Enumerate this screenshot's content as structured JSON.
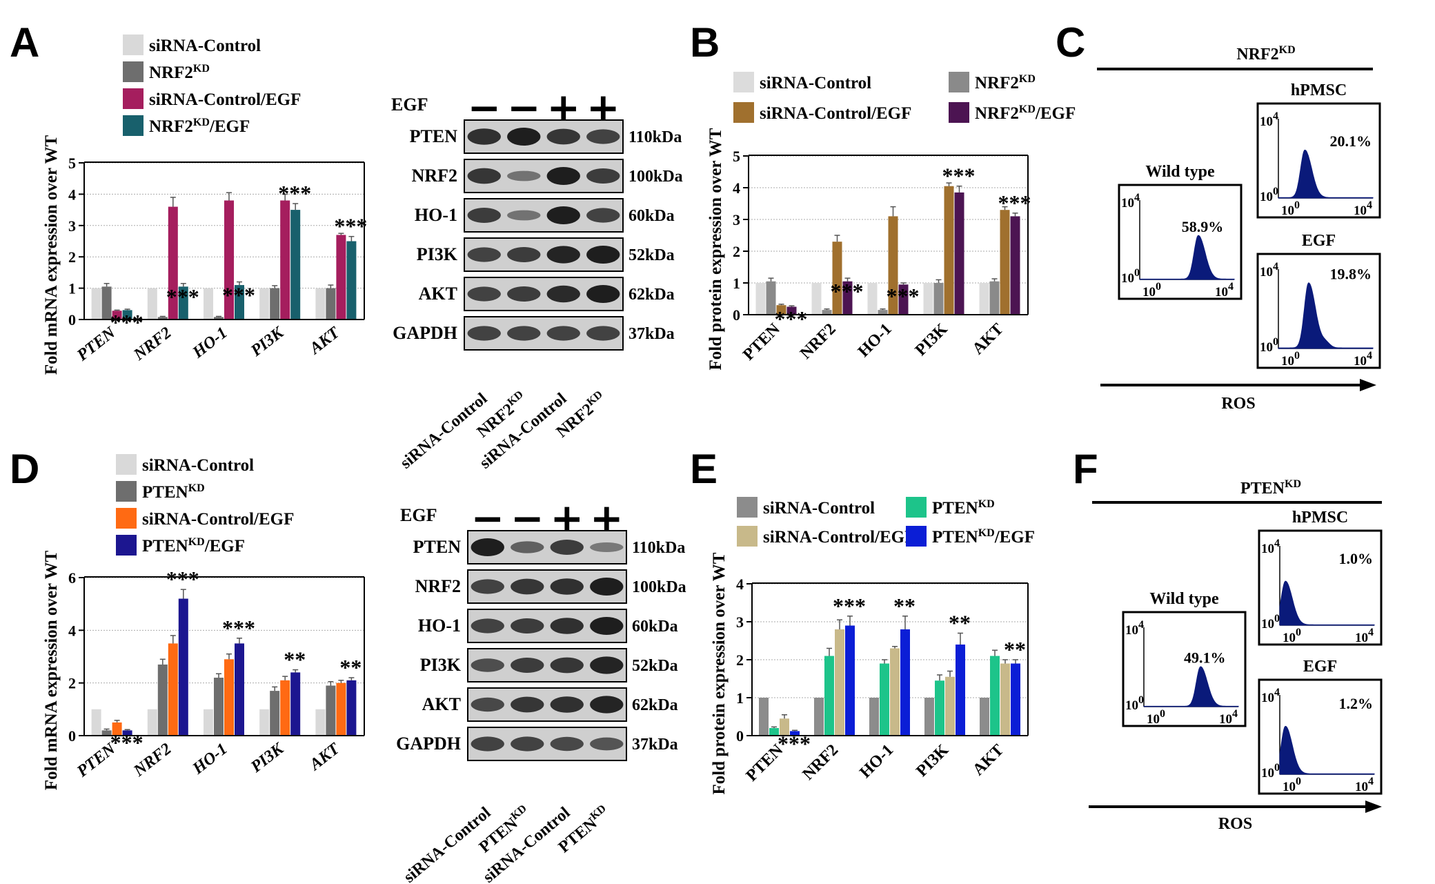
{
  "panels": {
    "A": "A",
    "B": "B",
    "C": "C",
    "D": "D",
    "E": "E",
    "F": "F"
  },
  "chart_data": [
    {
      "panel": "A",
      "type": "bar",
      "ylabel": "Fold mRNA expression over WT",
      "ylim": [
        0,
        5
      ],
      "yticks": [
        "0",
        "1",
        "2",
        "3",
        "4",
        "5"
      ],
      "categories": [
        "PTEN",
        "NRF2",
        "HO-1",
        "PI3K",
        "AKT"
      ],
      "series": [
        {
          "name": "siRNA-Control",
          "color": "#d9d9d9",
          "values": [
            1.0,
            1.0,
            1.0,
            1.0,
            1.0
          ],
          "errors": [
            0,
            0,
            0,
            0,
            0
          ]
        },
        {
          "name": "NRF2",
          "sup": "KD",
          "color": "#6e6e6e",
          "values": [
            1.05,
            0.08,
            0.08,
            1.0,
            1.0
          ],
          "errors": [
            0.1,
            0.02,
            0.02,
            0.08,
            0.1
          ]
        },
        {
          "name": "siRNA-Control/EGF",
          "color": "#a51e5e",
          "values": [
            0.28,
            3.6,
            3.8,
            3.8,
            2.7
          ],
          "errors": [
            0.02,
            0.3,
            0.25,
            0.2,
            0.05
          ]
        },
        {
          "name": "NRF2/EGF",
          "sup": "KD",
          "sup_after": "NRF2",
          "color": "#18606c",
          "values": [
            0.3,
            1.05,
            1.1,
            3.5,
            2.5
          ],
          "errors": [
            0.03,
            0.1,
            0.1,
            0.2,
            0.15
          ]
        }
      ],
      "significance": [
        "***",
        "***",
        "***",
        "***",
        "***"
      ]
    },
    {
      "panel": "B",
      "type": "bar",
      "ylabel": "Fold protein expression over WT",
      "ylim": [
        0,
        5
      ],
      "yticks": [
        "0",
        "1",
        "2",
        "3",
        "4",
        "5"
      ],
      "categories": [
        "PTEN",
        "NRF2",
        "HO-1",
        "PI3K",
        "AKT"
      ],
      "series": [
        {
          "name": "siRNA-Control",
          "color": "#dcdcdc",
          "values": [
            1.0,
            1.0,
            1.0,
            1.0,
            1.0
          ],
          "errors": [
            0,
            0,
            0,
            0,
            0
          ]
        },
        {
          "name": "NRF2",
          "sup": "KD",
          "color": "#8a8a8a",
          "values": [
            1.05,
            0.15,
            0.15,
            1.0,
            1.05
          ],
          "errors": [
            0.1,
            0.03,
            0.03,
            0.1,
            0.08
          ]
        },
        {
          "name": "siRNA-Control/EGF",
          "color": "#a0702e",
          "values": [
            0.3,
            2.3,
            3.1,
            4.05,
            3.3
          ],
          "errors": [
            0.03,
            0.2,
            0.3,
            0.1,
            0.1
          ]
        },
        {
          "name": "NRF2/EGF",
          "sup": "KD",
          "sup_after": "NRF2",
          "color": "#4c1452",
          "values": [
            0.25,
            1.05,
            0.95,
            3.85,
            3.1
          ],
          "errors": [
            0.03,
            0.1,
            0.05,
            0.2,
            0.1
          ]
        }
      ],
      "significance": [
        "***",
        "***",
        "***",
        "***",
        "***"
      ]
    },
    {
      "panel": "D",
      "type": "bar",
      "ylabel": "Fold mRNA expression over WT",
      "ylim": [
        0,
        6
      ],
      "yticks": [
        "0",
        "2",
        "4",
        "6"
      ],
      "categories": [
        "PTEN",
        "NRF2",
        "HO-1",
        "PI3K",
        "AKT"
      ],
      "series": [
        {
          "name": "siRNA-Control",
          "color": "#d9d9d9",
          "values": [
            1.0,
            1.0,
            1.0,
            1.0,
            1.0
          ],
          "errors": [
            0,
            0,
            0,
            0,
            0
          ]
        },
        {
          "name": "PTEN",
          "sup": "KD",
          "color": "#6e6e6e",
          "values": [
            0.2,
            2.7,
            2.2,
            1.7,
            1.9
          ],
          "errors": [
            0.05,
            0.2,
            0.15,
            0.15,
            0.15
          ]
        },
        {
          "name": "siRNA-Control/EGF",
          "color": "#ff6a13",
          "values": [
            0.5,
            3.5,
            2.9,
            2.1,
            2.0
          ],
          "errors": [
            0.08,
            0.3,
            0.2,
            0.15,
            0.1
          ]
        },
        {
          "name": "PTEN/EGF",
          "sup": "KD",
          "sup_after": "PTEN",
          "color": "#1c1690",
          "values": [
            0.2,
            5.2,
            3.5,
            2.4,
            2.1
          ],
          "errors": [
            0.03,
            0.35,
            0.2,
            0.1,
            0.1
          ]
        }
      ],
      "significance": [
        "***",
        "***",
        "***",
        "**",
        "**"
      ]
    },
    {
      "panel": "E",
      "type": "bar",
      "ylabel": "Fold protein expression over WT",
      "ylim": [
        0,
        4
      ],
      "yticks": [
        "0",
        "1",
        "2",
        "3",
        "4"
      ],
      "categories": [
        "PTEN",
        "NRF2",
        "HO-1",
        "PI3K",
        "AKT"
      ],
      "series": [
        {
          "name": "siRNA-Control",
          "color": "#8c8c8c",
          "values": [
            1.0,
            1.0,
            1.0,
            1.0,
            1.0
          ],
          "errors": [
            0,
            0,
            0,
            0,
            0
          ]
        },
        {
          "name": "PTEN",
          "sup": "KD",
          "color": "#1dc48a",
          "values": [
            0.2,
            2.1,
            1.9,
            1.45,
            2.1
          ],
          "errors": [
            0.03,
            0.2,
            0.1,
            0.15,
            0.15
          ]
        },
        {
          "name": "siRNA-Control/EGF",
          "color": "#c8b98a",
          "values": [
            0.45,
            2.8,
            2.3,
            1.55,
            1.9
          ],
          "errors": [
            0.1,
            0.25,
            0.05,
            0.15,
            0.1
          ]
        },
        {
          "name": "PTEN/EGF",
          "sup": "KD",
          "sup_after": "PTEN",
          "color": "#0b1ed6",
          "values": [
            0.12,
            2.9,
            2.8,
            2.4,
            1.9
          ],
          "errors": [
            0.02,
            0.25,
            0.35,
            0.3,
            0.1
          ]
        }
      ],
      "significance": [
        "***",
        "***",
        "**",
        "**",
        "**"
      ]
    },
    {
      "panel": "C",
      "type": "histogram",
      "header": "NRF2",
      "header_sup": "KD",
      "xlabel": "ROS",
      "plots": [
        {
          "title": "Wild type",
          "percent": "58.9%",
          "peak_pos": 0.62,
          "peak_height": 0.55,
          "secondary": 0
        },
        {
          "title": "hPMSC",
          "percent": "20.1%",
          "peak_pos": 0.28,
          "peak_height": 0.6,
          "secondary": 0
        },
        {
          "title": "EGF",
          "percent": "19.8%",
          "peak_pos": 0.32,
          "peak_height": 0.82,
          "secondary": 0.08
        }
      ]
    },
    {
      "panel": "F",
      "type": "histogram",
      "header": "PTEN",
      "header_sup": "KD",
      "xlabel": "ROS",
      "plots": [
        {
          "title": "Wild type",
          "percent": "49.1%",
          "peak_pos": 0.6,
          "peak_height": 0.5,
          "secondary": 0
        },
        {
          "title": "hPMSC",
          "percent": "1.0%",
          "peak_pos": 0.06,
          "peak_height": 0.55,
          "secondary": 0
        },
        {
          "title": "EGF",
          "percent": "1.2%",
          "peak_pos": 0.06,
          "peak_height": 0.6,
          "secondary": 0
        }
      ]
    }
  ],
  "tick_labels": {
    "ten": "10",
    "e4": "4",
    "e0": "0"
  },
  "blots": [
    {
      "panel": "A",
      "egf_label": "EGF",
      "egf": [
        "−",
        "−",
        "+",
        "+"
      ],
      "rows": [
        {
          "label": "PTEN",
          "kda": "110kDa",
          "bands": [
            0.85,
            1.0,
            0.8,
            0.7
          ]
        },
        {
          "label": "NRF2",
          "kda": "100kDa",
          "bands": [
            0.8,
            0.3,
            1.0,
            0.75
          ]
        },
        {
          "label": "HO-1",
          "kda": "60kDa",
          "bands": [
            0.75,
            0.3,
            1.0,
            0.7
          ]
        },
        {
          "label": "PI3K",
          "kda": "52kDa",
          "bands": [
            0.7,
            0.75,
            0.95,
            1.0
          ]
        },
        {
          "label": "AKT",
          "kda": "62kDa",
          "bands": [
            0.7,
            0.75,
            0.9,
            1.0
          ]
        },
        {
          "label": "GAPDH",
          "kda": "37kDa",
          "bands": [
            0.7,
            0.7,
            0.7,
            0.7
          ]
        }
      ],
      "lanes": [
        {
          "text": "siRNA-Control",
          "sup": ""
        },
        {
          "text": "NRF2",
          "sup": "KD"
        },
        {
          "text": "siRNA-Control",
          "sup": ""
        },
        {
          "text": "NRF2",
          "sup": "KD"
        }
      ]
    },
    {
      "panel": "D",
      "egf_label": "EGF",
      "egf": [
        "−",
        "−",
        "+",
        "+"
      ],
      "rows": [
        {
          "label": "PTEN",
          "kda": "110kDa",
          "bands": [
            1.0,
            0.45,
            0.75,
            0.25
          ]
        },
        {
          "label": "NRF2",
          "kda": "100kDa",
          "bands": [
            0.7,
            0.8,
            0.85,
            1.0
          ]
        },
        {
          "label": "HO-1",
          "kda": "60kDa",
          "bands": [
            0.7,
            0.75,
            0.85,
            1.0
          ]
        },
        {
          "label": "PI3K",
          "kda": "52kDa",
          "bands": [
            0.6,
            0.75,
            0.8,
            0.95
          ]
        },
        {
          "label": "AKT",
          "kda": "62kDa",
          "bands": [
            0.65,
            0.8,
            0.85,
            0.95
          ]
        },
        {
          "label": "GAPDH",
          "kda": "37kDa",
          "bands": [
            0.7,
            0.7,
            0.65,
            0.55
          ]
        }
      ],
      "lanes": [
        {
          "text": "siRNA-Control",
          "sup": ""
        },
        {
          "text": "PTEN",
          "sup": "KD"
        },
        {
          "text": "siRNA-Control",
          "sup": ""
        },
        {
          "text": "PTEN",
          "sup": "KD"
        }
      ]
    }
  ]
}
